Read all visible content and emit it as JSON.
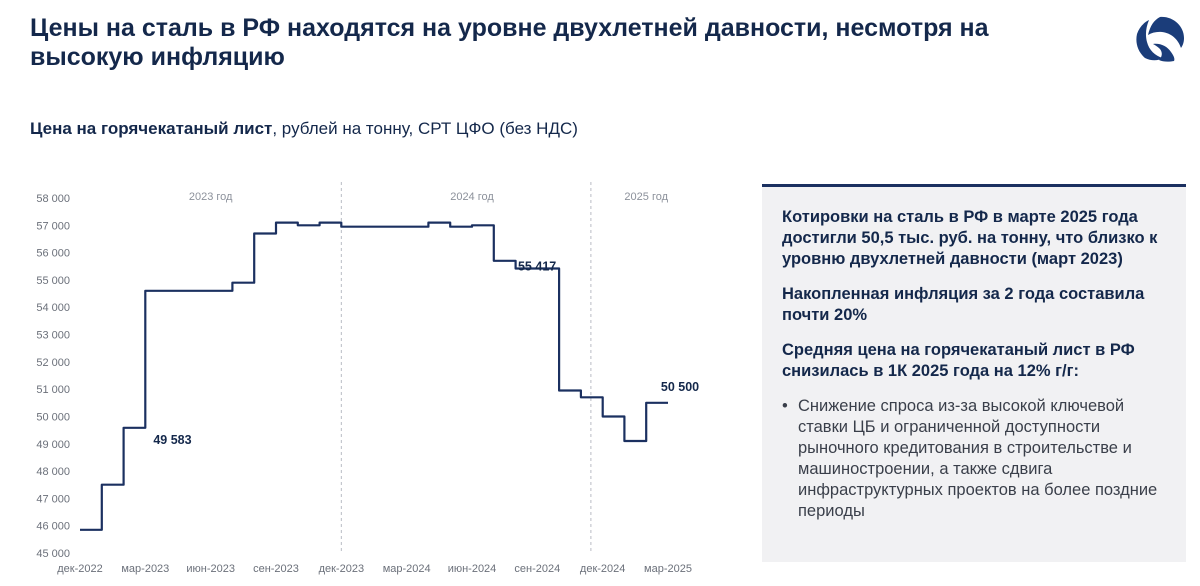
{
  "title": "Цены на сталь в РФ находятся на уровне двухлетней давности, несмотря на высокую инфляцию",
  "subtitle": {
    "bold": "Цена на горячекатаный лист",
    "rest": ", рублей на тонну, СРТ ЦФО (без НДС)"
  },
  "logo": {
    "icon": "company-logo-icon",
    "color": "#1b3d7a"
  },
  "panel": {
    "paragraphs": [
      "Котировки на сталь в РФ в марте 2025 года достигли 50,5 тыс. руб. на тонну, что близко к уровню двухлетней давности (март 2023)",
      "Накопленная инфляция за 2 года составила почти 20%",
      "Средняя цена на горячекатаный лист в РФ снизилась в 1К 2025 года на 12% г/г:"
    ],
    "bullets": [
      "Снижение спроса из-за высокой ключевой ставки ЦБ и ограниченной доступности рыночного кредитования в строительстве и машиностроении, а также сдвига инфраструктурных проектов на более поздние периоды"
    ]
  },
  "chart_data": {
    "type": "line",
    "x_axis_type": "month_index",
    "xlim": [
      "дек-2022",
      "мар-2025"
    ],
    "ylim": [
      45000,
      58000
    ],
    "yticks": [
      45000,
      46000,
      47000,
      48000,
      49000,
      50000,
      51000,
      52000,
      53000,
      54000,
      55000,
      56000,
      57000,
      58000
    ],
    "ytick_labels": [
      "45 000",
      "46 000",
      "47 000",
      "48 000",
      "49 000",
      "50 000",
      "51 000",
      "52 000",
      "53 000",
      "54 000",
      "55 000",
      "56 000",
      "57 000",
      "58 000"
    ],
    "xticks": [
      {
        "x": "дек-2022",
        "label": "дек-2022"
      },
      {
        "x": "мар-2023",
        "label": "мар-2023"
      },
      {
        "x": "июн-2023",
        "label": "июн-2023"
      },
      {
        "x": "сен-2023",
        "label": "сен-2023"
      },
      {
        "x": "дек-2023",
        "label": "дек-2023"
      },
      {
        "x": "мар-2024",
        "label": "мар-2024"
      },
      {
        "x": "июн-2024",
        "label": "июн-2024"
      },
      {
        "x": "сен-2024",
        "label": "сен-2024"
      },
      {
        "x": "дек-2024",
        "label": "дек-2024"
      },
      {
        "x": "мар-2025",
        "label": "мар-2025"
      }
    ],
    "year_labels": [
      {
        "x": "июн-2023",
        "label": "2023 год"
      },
      {
        "x": "июн-2024",
        "label": "2024 год"
      },
      {
        "x": "фев-2025",
        "label": "2025 год"
      }
    ],
    "year_dividers": [
      "дек-2023",
      "ноя-2024"
    ],
    "series": [
      {
        "color": "#1b3060",
        "x": [
          "дек-2022",
          "янв-2023",
          "янв-2023",
          "фев-2023",
          "фев-2023",
          "мар-2023",
          "мар-2023",
          "мар-2023",
          "апр-2023",
          "май-2023",
          "июн-2023",
          "июл-2023",
          "июл-2023",
          "авг-2023",
          "авг-2023",
          "сен-2023",
          "сен-2023",
          "окт-2023",
          "окт-2023",
          "ноя-2023",
          "ноя-2023",
          "дек-2023",
          "дек-2023",
          "янв-2024",
          "фев-2024",
          "мар-2024",
          "апр-2024",
          "апр-2024",
          "май-2024",
          "май-2024",
          "июн-2024",
          "июн-2024",
          "июл-2024",
          "июл-2024",
          "авг-2024",
          "авг-2024",
          "сен-2024",
          "окт-2024",
          "окт-2024",
          "ноя-2024",
          "ноя-2024",
          "дек-2024",
          "дек-2024",
          "янв-2025",
          "янв-2025",
          "фев-2025",
          "фев-2025",
          "мар-2025"
        ],
        "y": [
          45850,
          45850,
          47500,
          47500,
          49583,
          49583,
          54600,
          54600,
          54600,
          54600,
          54600,
          54600,
          54900,
          54900,
          56700,
          56700,
          57100,
          57100,
          57000,
          57000,
          57100,
          57100,
          56950,
          56950,
          56950,
          56950,
          56950,
          57100,
          57100,
          56950,
          56950,
          57000,
          57000,
          55700,
          55700,
          55417,
          55417,
          55417,
          50950,
          50950,
          50700,
          50700,
          50000,
          50000,
          49100,
          49100,
          50500,
          50500
        ]
      }
    ],
    "data_labels": [
      {
        "x": "мар-2023",
        "y": 49583,
        "label": "49 583"
      },
      {
        "x": "окт-2024",
        "y": 55417,
        "label": "55 417"
      },
      {
        "x": "мар-2025",
        "y": 50500,
        "label": "50 500"
      }
    ],
    "grid": false,
    "legend": "none"
  }
}
